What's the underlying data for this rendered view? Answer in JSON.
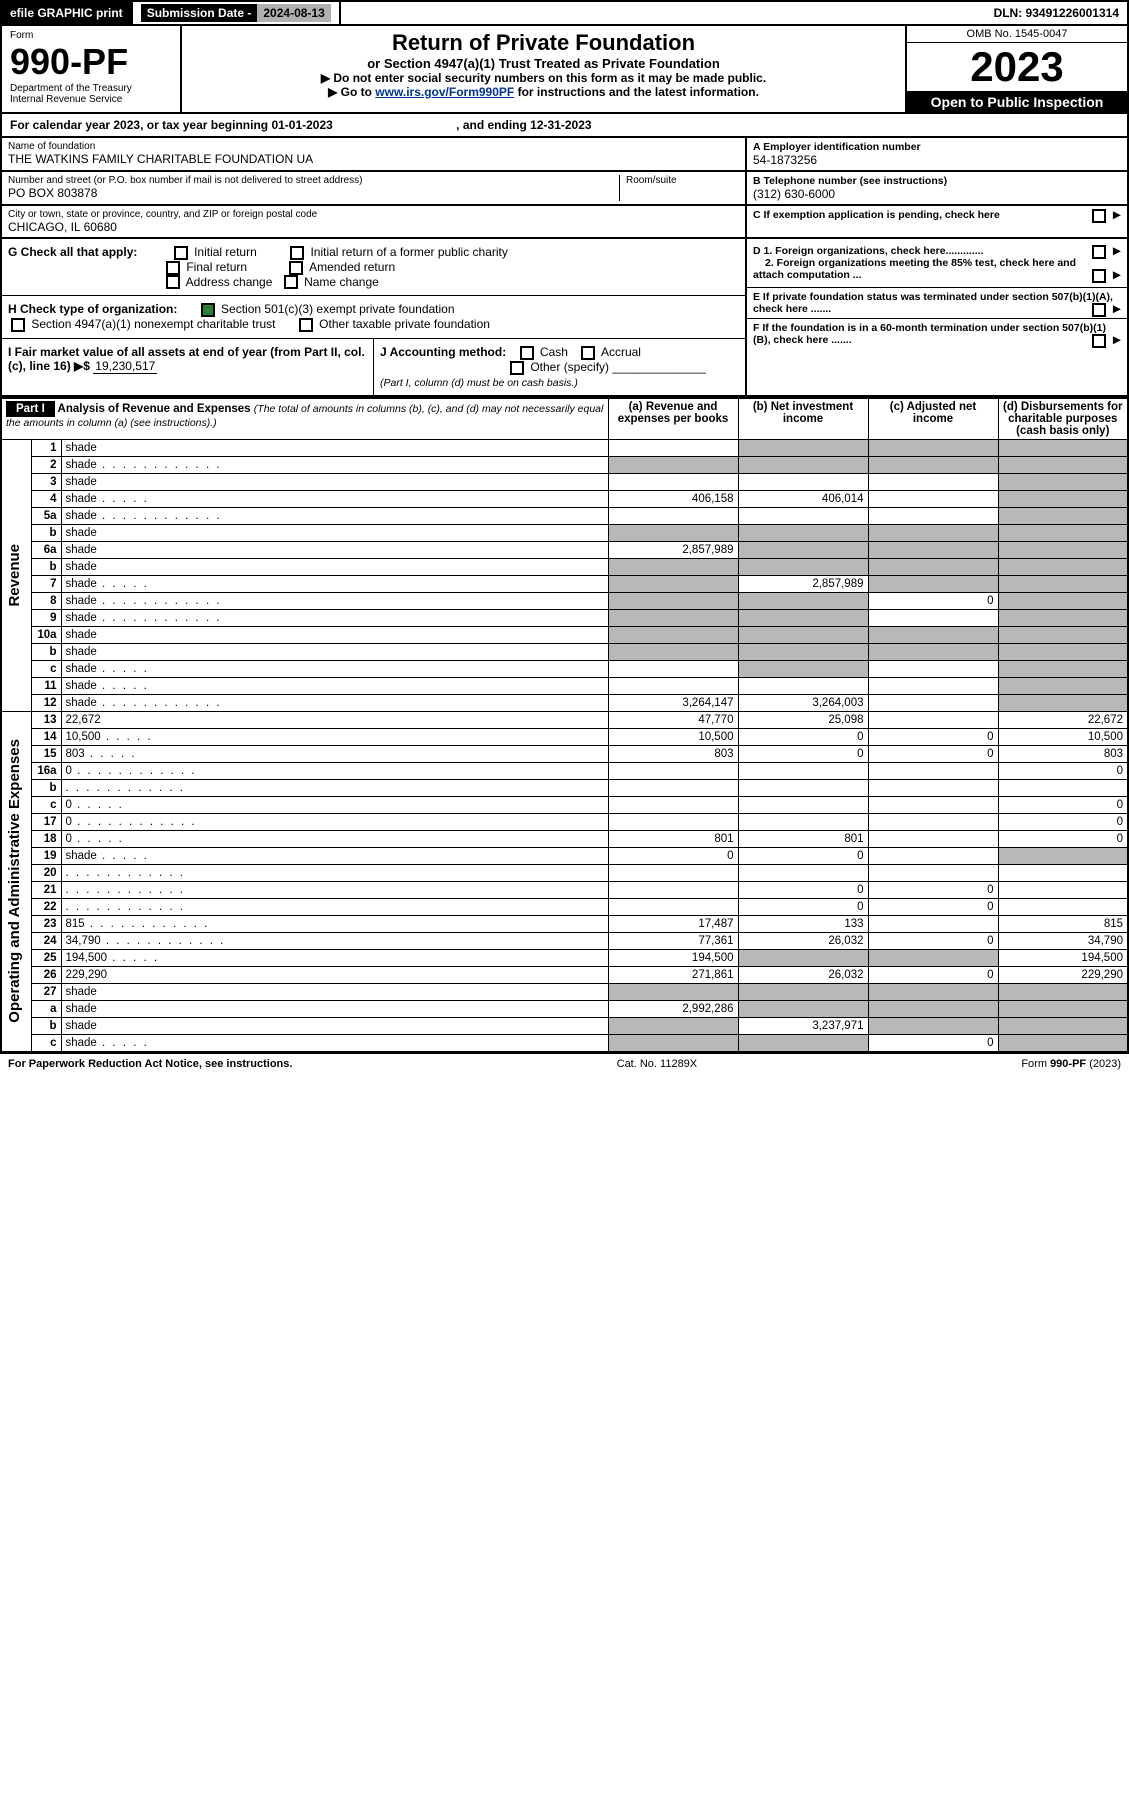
{
  "top": {
    "efile": "efile GRAPHIC print",
    "subdate_label": "Submission Date - ",
    "subdate": "2024-08-13",
    "dln": "DLN: 93491226001314"
  },
  "header": {
    "form_label": "Form",
    "form_no": "990-PF",
    "dept": "Department of the Treasury",
    "irs": "Internal Revenue Service",
    "title": "Return of Private Foundation",
    "subtitle": "or Section 4947(a)(1) Trust Treated as Private Foundation",
    "note1": "▶ Do not enter social security numbers on this form as it may be made public.",
    "note2_prefix": "▶ Go to ",
    "note2_link": "www.irs.gov/Form990PF",
    "note2_suffix": " for instructions and the latest information.",
    "omb": "OMB No. 1545-0047",
    "year": "2023",
    "otp": "Open to Public Inspection"
  },
  "calyear": {
    "text": "For calendar year 2023, or tax year beginning 01-01-2023",
    "ending": ", and ending 12-31-2023"
  },
  "entity": {
    "name_label": "Name of foundation",
    "name": "THE WATKINS FAMILY CHARITABLE FOUNDATION UA",
    "addr_label": "Number and street (or P.O. box number if mail is not delivered to street address)",
    "room_label": "Room/suite",
    "addr": "PO BOX 803878",
    "city_label": "City or town, state or province, country, and ZIP or foreign postal code",
    "city": "CHICAGO, IL  60680",
    "a_label": "A Employer identification number",
    "a_val": "54-1873256",
    "b_label": "B Telephone number (see instructions)",
    "b_val": "(312) 630-6000",
    "c_label": "C If exemption application is pending, check here",
    "d1_label": "D 1. Foreign organizations, check here.............",
    "d2_label": "2. Foreign organizations meeting the 85% test, check here and attach computation ...",
    "e_label": "E  If private foundation status was terminated under section 507(b)(1)(A), check here .......",
    "f_label": "F  If the foundation is in a 60-month termination under section 507(b)(1)(B), check here .......",
    "g_label": "G Check all that apply:",
    "g_opts": [
      "Initial return",
      "Final return",
      "Address change",
      "Initial return of a former public charity",
      "Amended return",
      "Name change"
    ],
    "h_label": "H Check type of organization:",
    "h_opt1": "Section 501(c)(3) exempt private foundation",
    "h_opt2": "Section 4947(a)(1) nonexempt charitable trust",
    "h_opt3": "Other taxable private foundation",
    "i_label": "I Fair market value of all assets at end of year (from Part II, col. (c), line 16) ▶$  ",
    "i_val": "19,230,517",
    "j_label": "J Accounting method:",
    "j_cash": "Cash",
    "j_accrual": "Accrual",
    "j_other": "Other (specify)",
    "j_note": "(Part I, column (d) must be on cash basis.)"
  },
  "part1": {
    "label": "Part I",
    "title": "Analysis of Revenue and Expenses",
    "title_note": " (The total of amounts in columns (b), (c), and (d) may not necessarily equal the amounts in column (a) (see instructions).)",
    "cols": {
      "a": "(a)   Revenue and expenses per books",
      "b": "(b)   Net investment income",
      "c": "(c)   Adjusted net income",
      "d": "(d)   Disbursements for charitable purposes (cash basis only)"
    },
    "vlabels": {
      "rev": "Revenue",
      "oae": "Operating and Administrative Expenses"
    },
    "lines": [
      {
        "n": "1",
        "d": "shade",
        "a": "",
        "b": "shade",
        "c": "shade"
      },
      {
        "n": "2",
        "d": "shade",
        "dots": true,
        "a": "shade",
        "b": "shade",
        "c": "shade"
      },
      {
        "n": "3",
        "d": "shade",
        "a": "",
        "b": "",
        "c": ""
      },
      {
        "n": "4",
        "d": "shade",
        "dots": "s",
        "a": "406,158",
        "b": "406,014",
        "c": ""
      },
      {
        "n": "5a",
        "d": "shade",
        "dots": true,
        "a": "",
        "b": "",
        "c": ""
      },
      {
        "n": "b",
        "d": "shade",
        "a": "shade",
        "b": "shade",
        "c": "shade"
      },
      {
        "n": "6a",
        "d": "shade",
        "a": "2,857,989",
        "b": "shade",
        "c": "shade"
      },
      {
        "n": "b",
        "d": "shade",
        "a": "shade",
        "b": "shade",
        "c": "shade"
      },
      {
        "n": "7",
        "d": "shade",
        "dots": "s",
        "a": "shade",
        "b": "2,857,989",
        "c": "shade"
      },
      {
        "n": "8",
        "d": "shade",
        "dots": true,
        "a": "shade",
        "b": "shade",
        "c": "0"
      },
      {
        "n": "9",
        "d": "shade",
        "dots": true,
        "a": "shade",
        "b": "shade",
        "c": ""
      },
      {
        "n": "10a",
        "d": "shade",
        "a": "shade",
        "b": "shade",
        "c": "shade"
      },
      {
        "n": "b",
        "d": "shade",
        "a": "shade",
        "b": "shade",
        "c": "shade"
      },
      {
        "n": "c",
        "d": "shade",
        "dots": "s",
        "a": "",
        "b": "shade",
        "c": ""
      },
      {
        "n": "11",
        "d": "shade",
        "dots": "s",
        "a": "",
        "b": "",
        "c": ""
      },
      {
        "n": "12",
        "d": "shade",
        "dots": true,
        "a": "3,264,147",
        "b": "3,264,003",
        "c": ""
      },
      {
        "n": "13",
        "d": "22,672",
        "a": "47,770",
        "b": "25,098",
        "c": ""
      },
      {
        "n": "14",
        "d": "10,500",
        "dots": "s",
        "a": "10,500",
        "b": "0",
        "c": "0"
      },
      {
        "n": "15",
        "d": "803",
        "dots": "s",
        "a": "803",
        "b": "0",
        "c": "0"
      },
      {
        "n": "16a",
        "d": "0",
        "dots": true,
        "a": "",
        "b": "",
        "c": ""
      },
      {
        "n": "b",
        "d": "",
        "dots": true,
        "a": "",
        "b": "",
        "c": ""
      },
      {
        "n": "c",
        "d": "0",
        "dots": "s",
        "a": "",
        "b": "",
        "c": ""
      },
      {
        "n": "17",
        "d": "0",
        "dots": true,
        "a": "",
        "b": "",
        "c": ""
      },
      {
        "n": "18",
        "d": "0",
        "dots": "s",
        "a": "801",
        "b": "801",
        "c": ""
      },
      {
        "n": "19",
        "d": "shade",
        "dots": "s",
        "a": "0",
        "b": "0",
        "c": ""
      },
      {
        "n": "20",
        "d": "",
        "dots": true,
        "a": "",
        "b": "",
        "c": ""
      },
      {
        "n": "21",
        "d": "",
        "dots": true,
        "a": "",
        "b": "0",
        "c": "0"
      },
      {
        "n": "22",
        "d": "",
        "dots": true,
        "a": "",
        "b": "0",
        "c": "0"
      },
      {
        "n": "23",
        "d": "815",
        "dots": true,
        "a": "17,487",
        "b": "133",
        "c": ""
      },
      {
        "n": "24",
        "d": "34,790",
        "dots": true,
        "a": "77,361",
        "b": "26,032",
        "c": "0"
      },
      {
        "n": "25",
        "d": "194,500",
        "dots": "s",
        "a": "194,500",
        "b": "shade",
        "c": "shade"
      },
      {
        "n": "26",
        "d": "229,290",
        "a": "271,861",
        "b": "26,032",
        "c": "0"
      },
      {
        "n": "27",
        "d": "shade",
        "a": "shade",
        "b": "shade",
        "c": "shade"
      },
      {
        "n": "a",
        "d": "shade",
        "a": "2,992,286",
        "b": "shade",
        "c": "shade"
      },
      {
        "n": "b",
        "d": "shade",
        "a": "shade",
        "b": "3,237,971",
        "c": "shade"
      },
      {
        "n": "c",
        "d": "shade",
        "dots": "s",
        "a": "shade",
        "b": "shade",
        "c": "0"
      }
    ]
  },
  "footer": {
    "left": "For Paperwork Reduction Act Notice, see instructions.",
    "center": "Cat. No. 11289X",
    "right": "Form 990-PF (2023)"
  }
}
